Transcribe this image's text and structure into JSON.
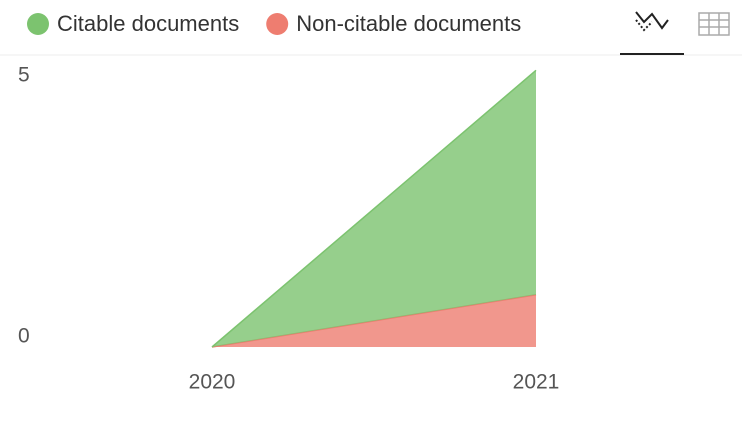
{
  "chart_data": {
    "type": "stacked-area",
    "x": [
      2020,
      2021
    ],
    "series": [
      {
        "name": "Citable documents",
        "color": "#7cc36f",
        "values": [
          0,
          4.3
        ]
      },
      {
        "name": "Non-citable documents",
        "color": "#ee7d70",
        "values": [
          0,
          1
        ]
      }
    ],
    "xlim": [
      2020,
      2021
    ],
    "xticks": [
      2020,
      2021
    ],
    "ylim": [
      0,
      5.3
    ],
    "yticks": [
      0,
      5
    ],
    "grid": false,
    "legend": "top-left"
  }
}
